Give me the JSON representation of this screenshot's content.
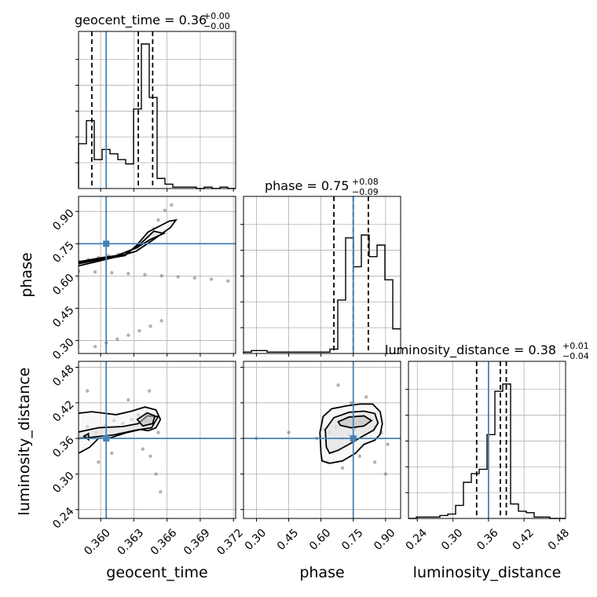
{
  "chart_data": {
    "type": "corner",
    "parameters": [
      "geocent_time",
      "phase",
      "luminosity_distance"
    ],
    "truths": [
      0.3605,
      0.75,
      0.36
    ],
    "ranges": {
      "geocent_time": [
        0.358,
        0.3722
      ],
      "phase": [
        0.24,
        0.97
      ],
      "luminosity_distance": [
        0.225,
        0.49
      ]
    },
    "ticks": {
      "geocent_time": [
        "0.360",
        "0.363",
        "0.366",
        "0.369",
        "0.372"
      ],
      "phase": [
        "0.30",
        "0.45",
        "0.60",
        "0.75",
        "0.90"
      ],
      "luminosity_distance": [
        "0.24",
        "0.30",
        "0.36",
        "0.42",
        "0.48"
      ]
    },
    "titles": [
      {
        "param": "geocent_time",
        "value": "0.36",
        "plus": "+0.00",
        "minus": "−0.00"
      },
      {
        "param": "phase",
        "value": "0.75",
        "plus": "+0.08",
        "minus": "−0.09"
      },
      {
        "param": "luminosity_distance",
        "value": "0.38",
        "plus": "+0.01",
        "minus": "−0.04"
      }
    ],
    "quantiles": {
      "geocent_time": [
        0.3592,
        0.3634,
        0.3647
      ],
      "phase": [
        0.66,
        0.75,
        0.82
      ],
      "luminosity_distance": [
        0.34,
        0.38,
        0.39
      ]
    },
    "histograms": {
      "geocent_time": {
        "edges_start": 0.358,
        "bin_width": 0.00071,
        "counts": [
          0.31,
          0.47,
          0.2,
          0.27,
          0.24,
          0.2,
          0.17,
          0.55,
          1.0,
          0.63,
          0.07,
          0.03,
          0.01,
          0.01,
          0.01,
          0.0,
          0.01,
          0.0,
          0.01,
          0.0
        ]
      },
      "phase": {
        "edges_start": 0.24,
        "bin_width": 0.0365,
        "counts": [
          0.01,
          0.02,
          0.02,
          0.01,
          0.01,
          0.01,
          0.01,
          0.01,
          0.01,
          0.01,
          0.01,
          0.03,
          0.37,
          0.8,
          0.6,
          0.82,
          0.67,
          0.75,
          0.51,
          0.17
        ]
      },
      "luminosity_distance": {
        "edges_start": 0.225,
        "bin_width": 0.01325,
        "counts": [
          0.0,
          0.01,
          0.01,
          0.01,
          0.02,
          0.03,
          0.09,
          0.25,
          0.31,
          0.34,
          0.58,
          0.88,
          0.93,
          0.1,
          0.05,
          0.04,
          0.01,
          0.01,
          0.0,
          0.0
        ]
      }
    },
    "density_2d": {
      "phase_vs_geocent_time": {
        "samples": [
          [
            0.3581,
            0.666
          ],
          [
            0.3589,
            0.676
          ],
          [
            0.3598,
            0.686
          ],
          [
            0.3607,
            0.694
          ],
          [
            0.3616,
            0.701
          ],
          [
            0.3625,
            0.712
          ],
          [
            0.3634,
            0.73
          ],
          [
            0.3643,
            0.78
          ],
          [
            0.3648,
            0.82
          ],
          [
            0.3652,
            0.86
          ],
          [
            0.3658,
            0.905
          ],
          [
            0.3664,
            0.93
          ],
          [
            0.358,
            0.622
          ],
          [
            0.3595,
            0.619
          ],
          [
            0.361,
            0.615
          ],
          [
            0.3625,
            0.611
          ],
          [
            0.364,
            0.606
          ],
          [
            0.3655,
            0.601
          ],
          [
            0.367,
            0.596
          ],
          [
            0.3685,
            0.591
          ],
          [
            0.37,
            0.585
          ],
          [
            0.3715,
            0.577
          ],
          [
            0.3595,
            0.272
          ],
          [
            0.3605,
            0.289
          ],
          [
            0.3615,
            0.307
          ],
          [
            0.3625,
            0.325
          ],
          [
            0.3635,
            0.345
          ],
          [
            0.3645,
            0.367
          ],
          [
            0.3655,
            0.392
          ]
        ],
        "contours": [
          [
            [
              0.3578,
              0.655
            ],
            [
              0.3598,
              0.675
            ],
            [
              0.3622,
              0.695
            ],
            [
              0.3632,
              0.74
            ],
            [
              0.3643,
              0.805
            ],
            [
              0.3662,
              0.855
            ],
            [
              0.3668,
              0.86
            ],
            [
              0.3663,
              0.825
            ],
            [
              0.3648,
              0.77
            ],
            [
              0.3632,
              0.715
            ],
            [
              0.3615,
              0.69
            ],
            [
              0.3595,
              0.665
            ],
            [
              0.3578,
              0.645
            ],
            [
              0.3578,
              0.655
            ]
          ],
          [
            [
              0.3578,
              0.664
            ],
            [
              0.3602,
              0.686
            ],
            [
              0.3622,
              0.7
            ],
            [
              0.3636,
              0.75
            ],
            [
              0.3648,
              0.808
            ],
            [
              0.3657,
              0.798
            ],
            [
              0.3645,
              0.77
            ],
            [
              0.3632,
              0.73
            ],
            [
              0.3615,
              0.696
            ],
            [
              0.3595,
              0.675
            ],
            [
              0.3578,
              0.659
            ],
            [
              0.3578,
              0.664
            ]
          ]
        ]
      },
      "luminosity_distance_vs_geocent_time": {
        "samples": [
          [
            0.3581,
            0.36
          ],
          [
            0.3588,
            0.38
          ],
          [
            0.3596,
            0.37
          ],
          [
            0.3604,
            0.382
          ],
          [
            0.3612,
            0.39
          ],
          [
            0.362,
            0.385
          ],
          [
            0.3628,
            0.392
          ],
          [
            0.3634,
            0.4
          ],
          [
            0.3641,
            0.392
          ],
          [
            0.3646,
            0.385
          ],
          [
            0.3652,
            0.37
          ],
          [
            0.3638,
            0.342
          ],
          [
            0.3645,
            0.33
          ],
          [
            0.365,
            0.3
          ],
          [
            0.3654,
            0.27
          ],
          [
            0.3598,
            0.32
          ],
          [
            0.361,
            0.335
          ],
          [
            0.3588,
            0.44
          ],
          [
            0.3625,
            0.425
          ],
          [
            0.3644,
            0.44
          ]
        ],
        "contours": [
          [
            [
              0.3578,
              0.333
            ],
            [
              0.359,
              0.345
            ],
            [
              0.3598,
              0.36
            ],
            [
              0.3607,
              0.36
            ],
            [
              0.3624,
              0.37
            ],
            [
              0.3636,
              0.375
            ],
            [
              0.3643,
              0.373
            ],
            [
              0.365,
              0.378
            ],
            [
              0.3654,
              0.392
            ],
            [
              0.365,
              0.408
            ],
            [
              0.364,
              0.413
            ],
            [
              0.3628,
              0.406
            ],
            [
              0.3614,
              0.4
            ],
            [
              0.3592,
              0.405
            ],
            [
              0.3578,
              0.402
            ],
            [
              0.3578,
              0.333
            ]
          ],
          [
            [
              0.3578,
              0.37
            ],
            [
              0.3598,
              0.378
            ],
            [
              0.362,
              0.38
            ],
            [
              0.3634,
              0.385
            ],
            [
              0.3642,
              0.398
            ],
            [
              0.3652,
              0.397
            ],
            [
              0.3646,
              0.378
            ],
            [
              0.3632,
              0.374
            ],
            [
              0.3612,
              0.366
            ],
            [
              0.3592,
              0.362
            ],
            [
              0.3578,
              0.36
            ],
            [
              0.3578,
              0.37
            ]
          ],
          [
            [
              0.3633,
              0.392
            ],
            [
              0.3642,
              0.403
            ],
            [
              0.3649,
              0.398
            ],
            [
              0.3647,
              0.385
            ],
            [
              0.3638,
              0.381
            ],
            [
              0.3633,
              0.392
            ]
          ],
          [
            [
              0.3585,
              0.364
            ],
            [
              0.3589,
              0.368
            ],
            [
              0.3589,
              0.358
            ],
            [
              0.3585,
              0.364
            ]
          ]
        ]
      },
      "luminosity_distance_vs_phase": {
        "samples": [
          [
            0.58,
            0.36
          ],
          [
            0.61,
            0.375
          ],
          [
            0.64,
            0.37
          ],
          [
            0.67,
            0.38
          ],
          [
            0.7,
            0.36
          ],
          [
            0.73,
            0.365
          ],
          [
            0.76,
            0.375
          ],
          [
            0.79,
            0.385
          ],
          [
            0.82,
            0.39
          ],
          [
            0.85,
            0.38
          ],
          [
            0.88,
            0.37
          ],
          [
            0.91,
            0.35
          ],
          [
            0.63,
            0.32
          ],
          [
            0.7,
            0.31
          ],
          [
            0.78,
            0.33
          ],
          [
            0.85,
            0.32
          ],
          [
            0.74,
            0.42
          ],
          [
            0.81,
            0.43
          ],
          [
            0.3,
            0.36
          ],
          [
            0.45,
            0.37
          ],
          [
            0.9,
            0.3
          ],
          [
            0.68,
            0.45
          ]
        ],
        "contours": [
          [
            [
              0.6,
              0.335
            ],
            [
              0.595,
              0.37
            ],
            [
              0.61,
              0.397
            ],
            [
              0.65,
              0.41
            ],
            [
              0.72,
              0.415
            ],
            [
              0.78,
              0.418
            ],
            [
              0.84,
              0.418
            ],
            [
              0.875,
              0.405
            ],
            [
              0.885,
              0.385
            ],
            [
              0.875,
              0.367
            ],
            [
              0.85,
              0.357
            ],
            [
              0.8,
              0.35
            ],
            [
              0.76,
              0.335
            ],
            [
              0.7,
              0.322
            ],
            [
              0.64,
              0.318
            ],
            [
              0.605,
              0.322
            ],
            [
              0.6,
              0.335
            ]
          ],
          [
            [
              0.625,
              0.345
            ],
            [
              0.62,
              0.375
            ],
            [
              0.66,
              0.395
            ],
            [
              0.73,
              0.404
            ],
            [
              0.8,
              0.406
            ],
            [
              0.85,
              0.402
            ],
            [
              0.865,
              0.386
            ],
            [
              0.845,
              0.374
            ],
            [
              0.8,
              0.365
            ],
            [
              0.74,
              0.352
            ],
            [
              0.68,
              0.34
            ],
            [
              0.64,
              0.335
            ],
            [
              0.625,
              0.345
            ]
          ],
          [
            [
              0.68,
              0.388
            ],
            [
              0.73,
              0.396
            ],
            [
              0.8,
              0.398
            ],
            [
              0.835,
              0.39
            ],
            [
              0.8,
              0.381
            ],
            [
              0.74,
              0.378
            ],
            [
              0.69,
              0.382
            ],
            [
              0.68,
              0.388
            ]
          ]
        ]
      }
    }
  }
}
